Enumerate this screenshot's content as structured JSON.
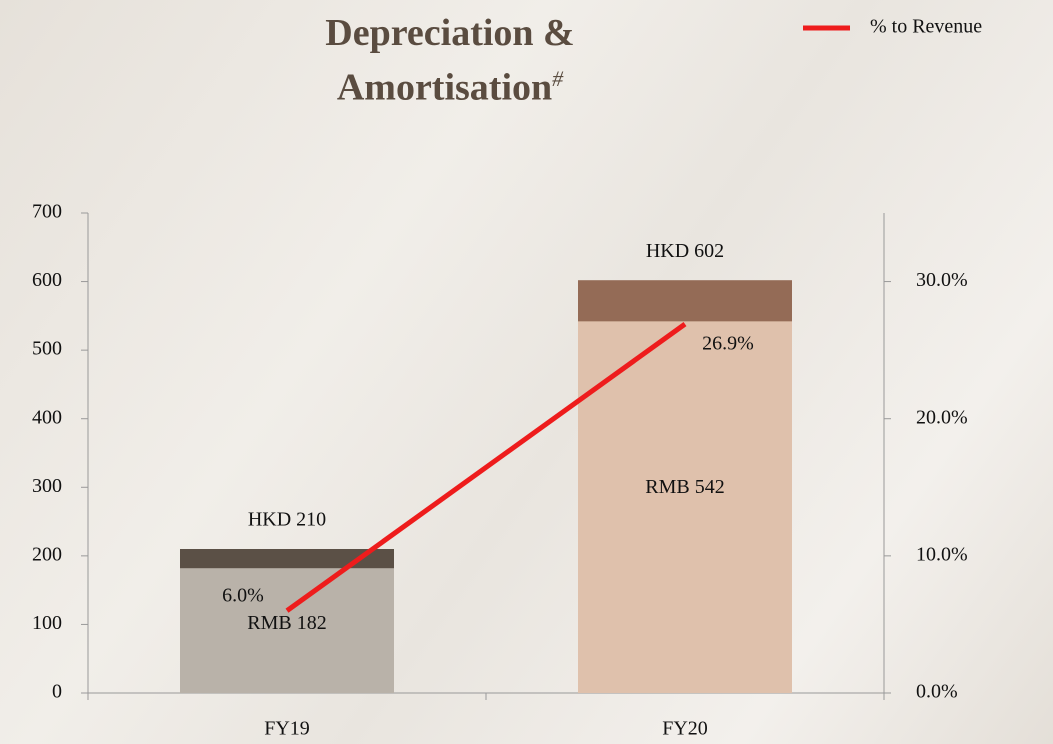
{
  "chart_data": {
    "type": "bar",
    "title": "Depreciation & Amortisation",
    "title_superscript": "#",
    "categories": [
      "FY19",
      "FY20"
    ],
    "series": [
      {
        "colors": [
          "#5b5046",
          "#946b56"
        ],
        "values": [
          210,
          602
        ],
        "value_labels": [
          "HKD 210",
          "HKD 602"
        ]
      },
      {
        "colors": [
          "#b9b2a9",
          "#dfc1ac"
        ],
        "values": [
          182,
          542
        ],
        "value_labels": [
          "RMB 182",
          "RMB 542"
        ]
      },
      {
        "name": "% to Revenue",
        "type": "line",
        "axis": "y2",
        "color": "#ee1c1c",
        "values": [
          6.0,
          26.9
        ],
        "value_labels": [
          "6.0%",
          "26.9%"
        ]
      }
    ],
    "ylim": [
      0,
      700
    ],
    "yticks": [
      0,
      100,
      200,
      300,
      400,
      500,
      600,
      700
    ],
    "y2lim": [
      0,
      35
    ],
    "y2ticks": [
      {
        "value": 0,
        "label": "0.0%"
      },
      {
        "value": 10,
        "label": "10.0%"
      },
      {
        "value": 20,
        "label": "20.0%"
      },
      {
        "value": 30,
        "label": "30.0%"
      }
    ],
    "legend": "top-right"
  }
}
